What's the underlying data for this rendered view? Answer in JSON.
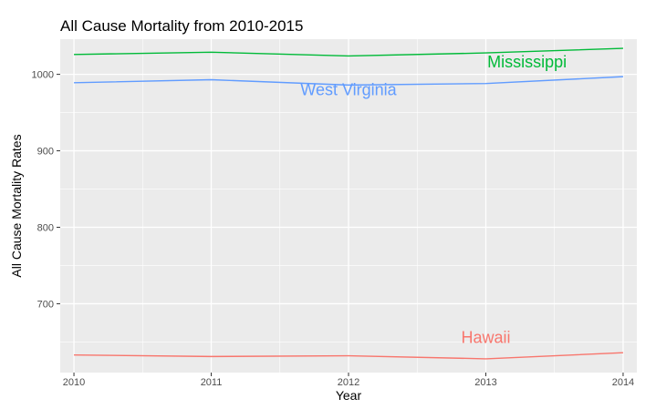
{
  "chart_data": {
    "type": "line",
    "title": "All Cause Mortality from 2010-2015",
    "xlabel": "Year",
    "ylabel": "All Cause Mortality Rates",
    "x": [
      2010,
      2011,
      2012,
      2013,
      2014
    ],
    "x_tick_labels": [
      "2010",
      "2011",
      "2012",
      "2013",
      "2014"
    ],
    "y_ticks": [
      700,
      800,
      900,
      1000
    ],
    "y_tick_labels": [
      "700",
      "800",
      "900",
      "1000"
    ],
    "xlim": [
      2009.9,
      2014.1
    ],
    "ylim": [
      610,
      1046
    ],
    "grid": true,
    "legend": "none",
    "series": [
      {
        "name": "Mississippi",
        "color": "#00ba38",
        "values": [
          1026,
          1029,
          1024,
          1028,
          1034
        ],
        "label_at": [
          2013.3,
          1009
        ]
      },
      {
        "name": "West Virginia",
        "color": "#619cff",
        "values": [
          989,
          993,
          986,
          988,
          997
        ],
        "label_at": [
          2012.0,
          973
        ]
      },
      {
        "name": "Hawaii",
        "color": "#f8766d",
        "values": [
          633,
          631,
          632,
          628,
          636
        ],
        "label_at": [
          2013.0,
          649
        ]
      }
    ],
    "colors": {
      "panel_bg": "#ebebeb",
      "grid": "#ffffff"
    }
  }
}
